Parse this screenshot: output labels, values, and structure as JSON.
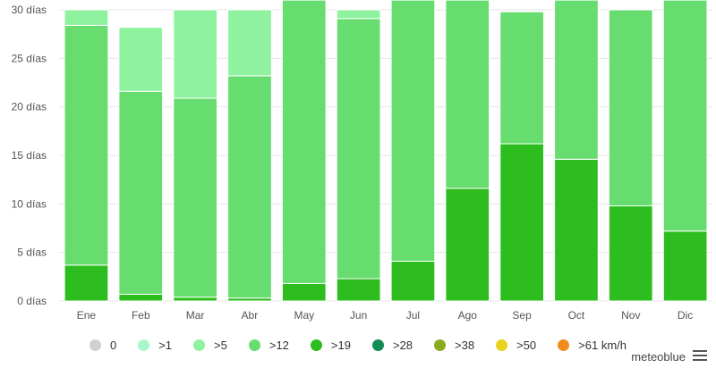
{
  "chart_data": {
    "type": "bar",
    "stacked": true,
    "categories": [
      "Ene",
      "Feb",
      "Mar",
      "Abr",
      "May",
      "Jun",
      "Jul",
      "Ago",
      "Sep",
      "Oct",
      "Nov",
      "Dic"
    ],
    "ylim": [
      0,
      30
    ],
    "yticks": [
      {
        "value": 0,
        "label": "0 días"
      },
      {
        "value": 5,
        "label": "5 días"
      },
      {
        "value": 10,
        "label": "10 días"
      },
      {
        "value": 15,
        "label": "15 días"
      },
      {
        "value": 20,
        "label": "20 días"
      },
      {
        "value": 25,
        "label": "25 días"
      },
      {
        "value": 30,
        "label": "30 días"
      }
    ],
    "grid": true,
    "legend_placement": "bottom",
    "series": [
      {
        "name": ">19",
        "color": "#2dbd1e",
        "values": [
          3.7,
          0.7,
          0.4,
          0.3,
          1.8,
          2.3,
          4.1,
          11.6,
          16.2,
          14.6,
          9.8,
          7.2
        ]
      },
      {
        "name": ">12",
        "color": "#66dd6e",
        "values": [
          24.7,
          20.9,
          20.5,
          22.9,
          29.2,
          26.8,
          26.9,
          19.4,
          13.6,
          16.4,
          20.2,
          23.8
        ]
      },
      {
        "name": ">5",
        "color": "#8ff29f",
        "values": [
          1.6,
          6.6,
          9.1,
          6.8,
          0,
          0.9,
          0,
          0,
          0,
          0,
          0,
          0
        ]
      }
    ],
    "legend": [
      {
        "label": "0",
        "color": "#d2cfd0"
      },
      {
        "label": ">1",
        "color": "#a8f7ca"
      },
      {
        "label": ">5",
        "color": "#8ff29f"
      },
      {
        "label": ">12",
        "color": "#66dd6e"
      },
      {
        "label": ">19",
        "color": "#2dbd1e"
      },
      {
        "label": ">28",
        "color": "#148c55"
      },
      {
        "label": ">38",
        "color": "#8aab1b"
      },
      {
        "label": ">50",
        "color": "#e8d21f"
      },
      {
        "label": ">61 km/h",
        "color": "#f08c1c"
      }
    ]
  },
  "brand": "meteoblue",
  "menu_icon": "hamburger-menu-icon"
}
